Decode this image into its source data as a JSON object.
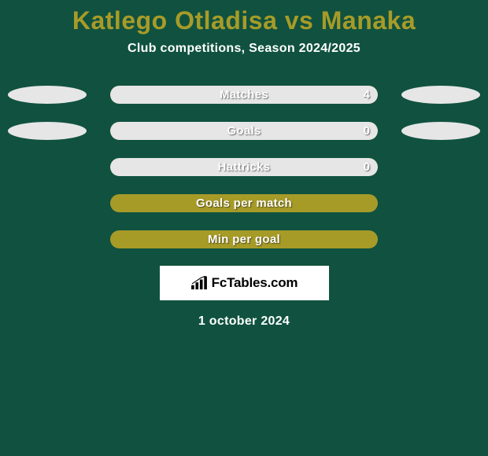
{
  "colors": {
    "background": "#10523f",
    "title": "#a79b28",
    "subtitle": "#ffffff",
    "track": "#a79b28",
    "fill_left": "#e6e6e6",
    "fill_right": "#e6e6e6",
    "label_text": "#ffffff",
    "value_text": "#ffffff",
    "bubble": "#e6e6e6",
    "date": "#ffffff"
  },
  "title": "Katlego Otladisa vs Manaka",
  "subtitle": "Club competitions, Season 2024/2025",
  "date": "1 october 2024",
  "logo_text": "FcTables.com",
  "rows": [
    {
      "label": "Matches",
      "value_left": "",
      "value_right": "4",
      "left_bubble": true,
      "right_bubble": true,
      "fill_right_pct": 100,
      "fill_left_pct": 0
    },
    {
      "label": "Goals",
      "value_left": "",
      "value_right": "0",
      "left_bubble": true,
      "right_bubble": true,
      "fill_right_pct": 100,
      "fill_left_pct": 0
    },
    {
      "label": "Hattricks",
      "value_left": "",
      "value_right": "0",
      "left_bubble": false,
      "right_bubble": false,
      "fill_right_pct": 100,
      "fill_left_pct": 0
    },
    {
      "label": "Goals per match",
      "value_left": "",
      "value_right": "",
      "left_bubble": false,
      "right_bubble": false,
      "fill_right_pct": 0,
      "fill_left_pct": 0
    },
    {
      "label": "Min per goal",
      "value_left": "",
      "value_right": "",
      "left_bubble": false,
      "right_bubble": false,
      "fill_right_pct": 0,
      "fill_left_pct": 0
    }
  ]
}
